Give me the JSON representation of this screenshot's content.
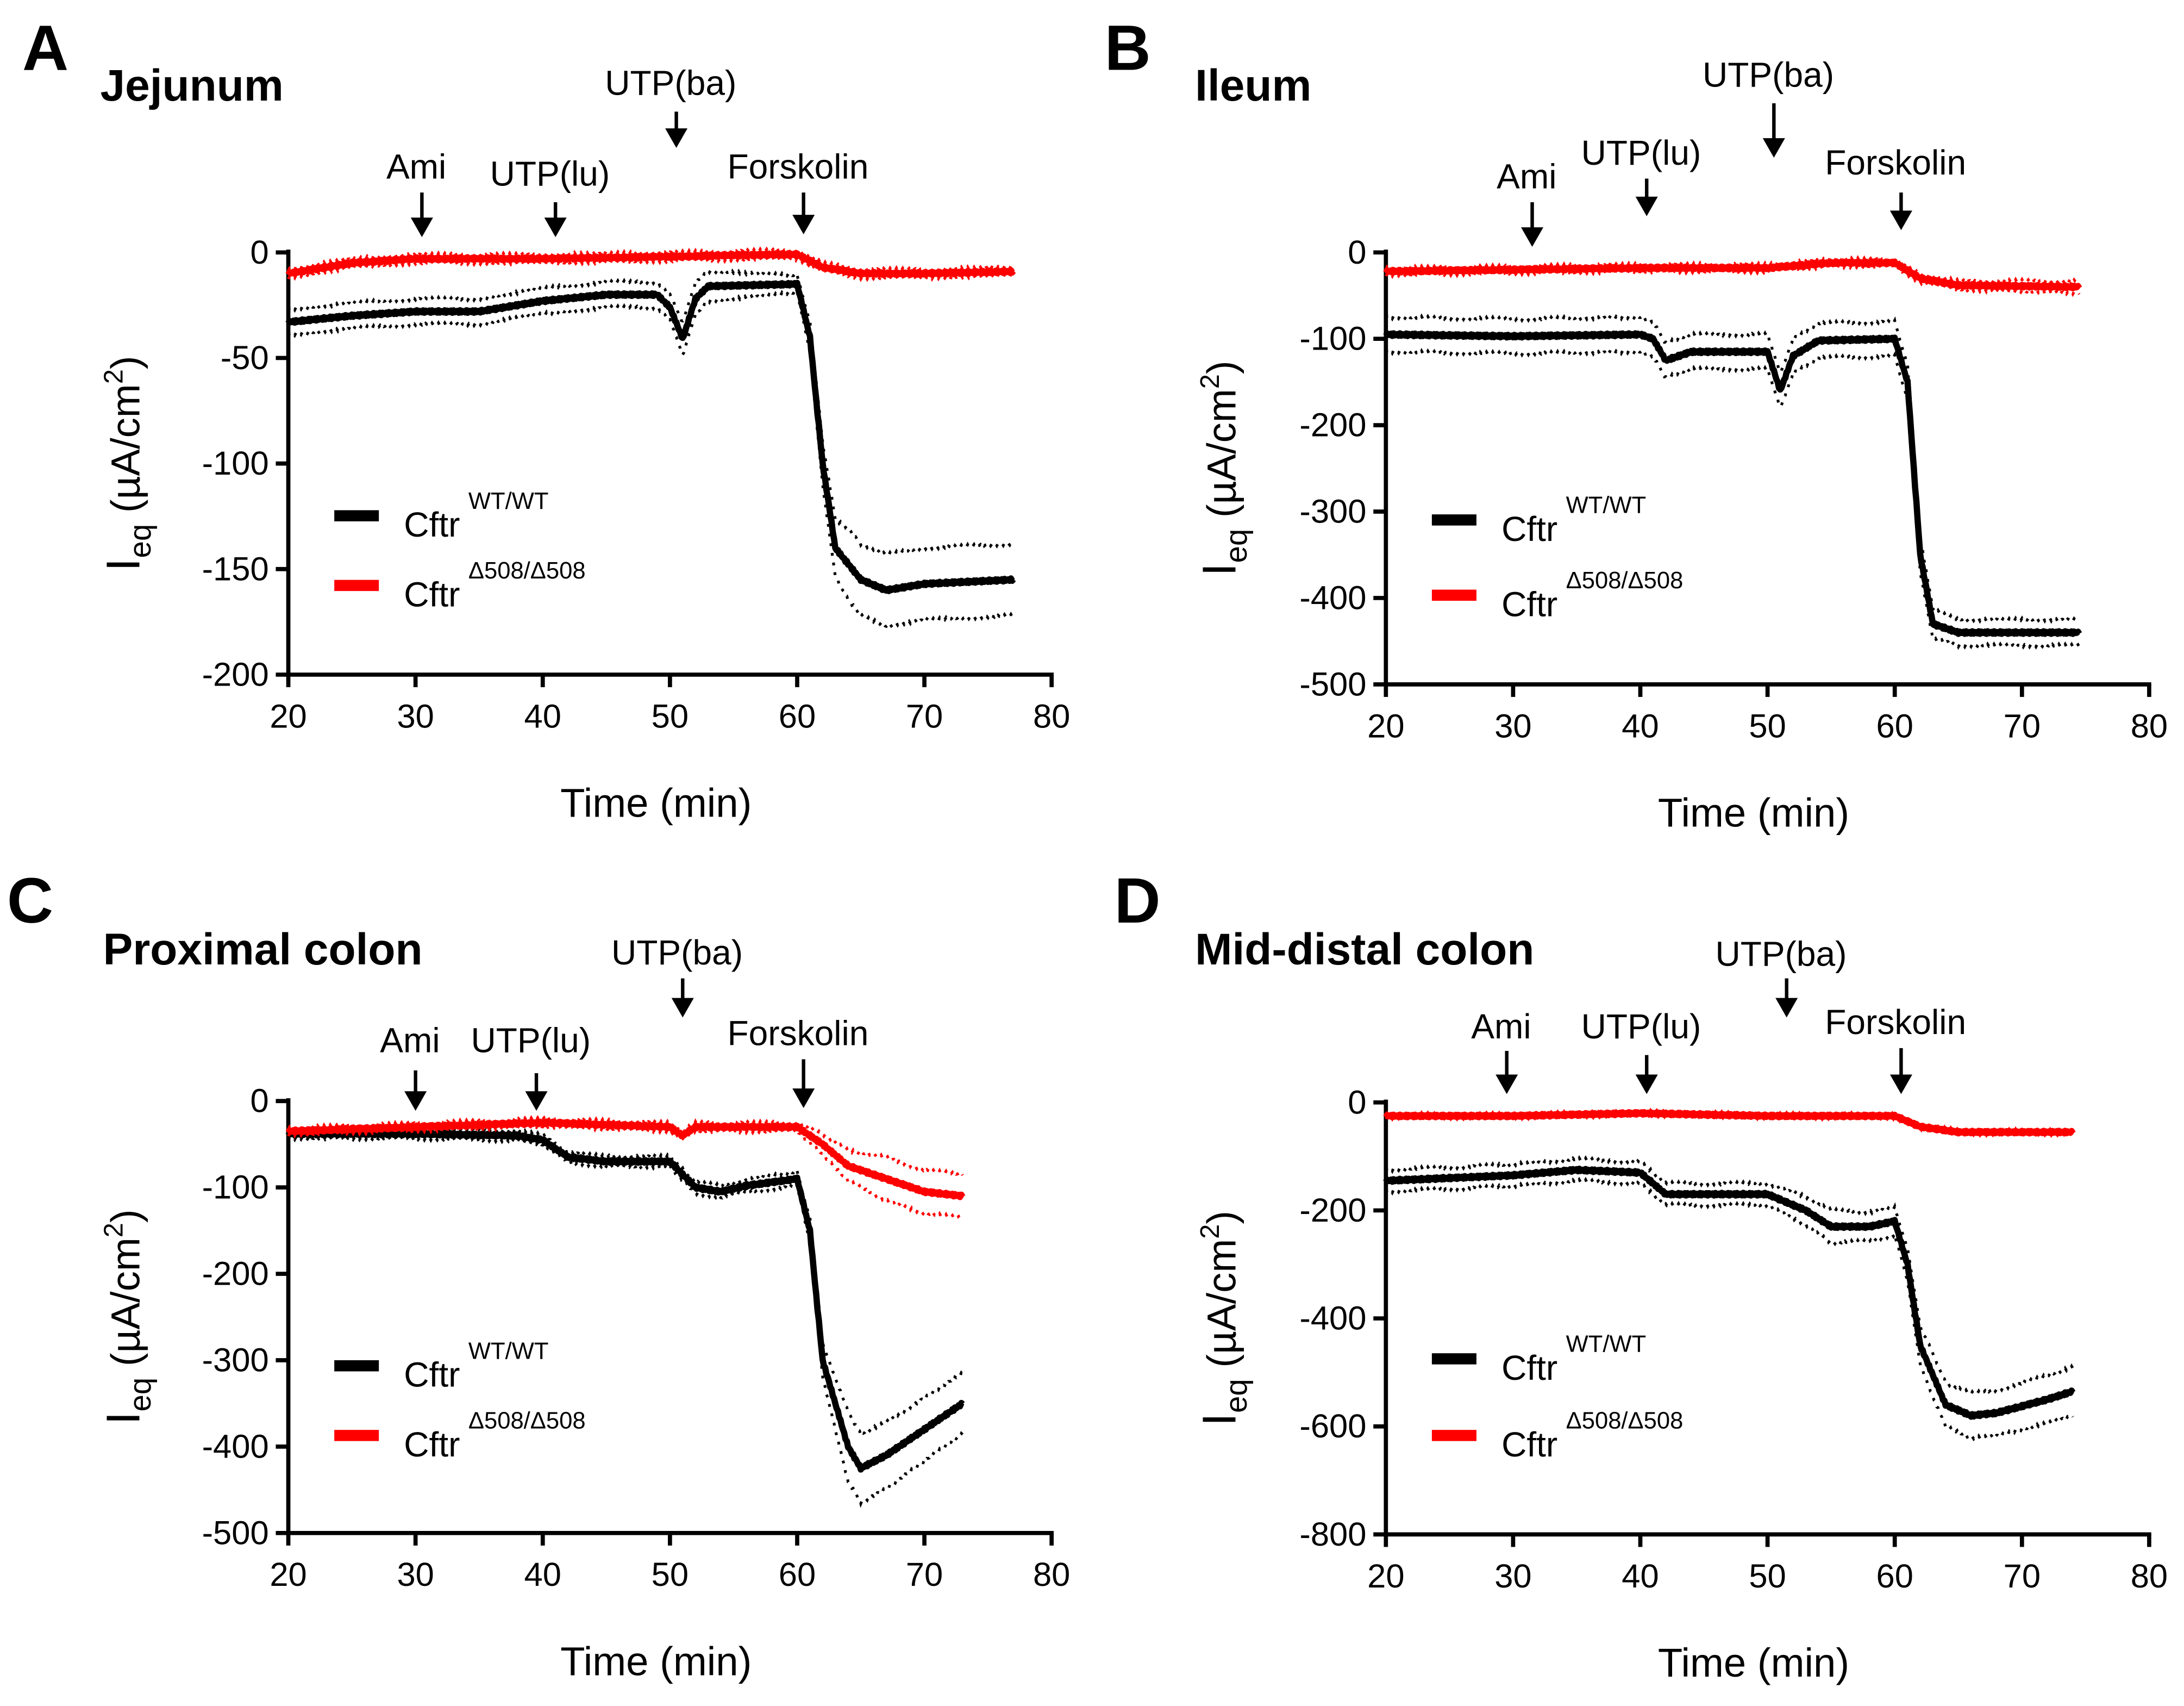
{
  "chart_data": [
    {
      "type": "line",
      "letter": "A",
      "title": "Jejunum",
      "xlabel": "Time (min)",
      "ylabel": "I",
      "ylabel_sub": "eq",
      "ylabel_unit": " (µA/cm",
      "ylabel_sup": "2",
      "ylabel_end": ")",
      "xlim": [
        20,
        80
      ],
      "ylim": [
        -200,
        0
      ],
      "xticks": [
        20,
        30,
        40,
        50,
        60,
        70,
        80
      ],
      "yticks": [
        0,
        -50,
        -100,
        -150,
        -200
      ],
      "annotations": [
        {
          "label": "Ami",
          "x": 30.5
        },
        {
          "label": "UTP(lu)",
          "x": 41
        },
        {
          "label": "UTP(ba)",
          "x": 50.5
        },
        {
          "label": "Forskolin",
          "x": 60.5
        }
      ],
      "series": [
        {
          "name": "Cftr",
          "sup": "WT/WT",
          "color": "#000000",
          "points": [
            [
              20,
              -33
            ],
            [
              25,
              -30
            ],
            [
              30,
              -28
            ],
            [
              35,
              -28
            ],
            [
              40,
              -23
            ],
            [
              45,
              -20
            ],
            [
              49,
              -20
            ],
            [
              50,
              -26
            ],
            [
              51,
              -41
            ],
            [
              52,
              -22
            ],
            [
              53,
              -16
            ],
            [
              60,
              -15
            ],
            [
              61,
              -40
            ],
            [
              62,
              -100
            ],
            [
              63,
              -140
            ],
            [
              65,
              -155
            ],
            [
              67,
              -160
            ],
            [
              70,
              -157
            ],
            [
              77,
              -155
            ]
          ],
          "sem": [
            [
              20,
              6
            ],
            [
              50,
              6
            ],
            [
              51,
              8
            ],
            [
              60,
              4
            ],
            [
              62,
              10
            ],
            [
              64,
              17
            ],
            [
              77,
              17
            ]
          ]
        },
        {
          "name": "Cftr",
          "sup": "Δ508/Δ508",
          "color": "#ff0000",
          "points": [
            [
              20,
              -10
            ],
            [
              25,
              -5
            ],
            [
              30,
              -3
            ],
            [
              40,
              -3
            ],
            [
              50,
              -2
            ],
            [
              58,
              -1
            ],
            [
              60,
              -1
            ],
            [
              62,
              -7
            ],
            [
              65,
              -10
            ],
            [
              70,
              -10
            ],
            [
              77,
              -9
            ]
          ],
          "sem": [
            [
              20,
              2
            ],
            [
              77,
              2
            ]
          ]
        }
      ]
    },
    {
      "type": "line",
      "letter": "B",
      "title": "Ileum",
      "xlabel": "Time (min)",
      "ylabel": "I",
      "ylabel_sub": "eq",
      "ylabel_unit": " (µA/cm",
      "ylabel_sup": "2",
      "ylabel_end": ")",
      "xlim": [
        20,
        80
      ],
      "ylim": [
        -500,
        0
      ],
      "xticks": [
        20,
        30,
        40,
        50,
        60,
        70,
        80
      ],
      "yticks": [
        0,
        -100,
        -200,
        -300,
        -400,
        -500
      ],
      "annotations": [
        {
          "label": "Ami",
          "x": 31.5
        },
        {
          "label": "UTP(lu)",
          "x": 40.5
        },
        {
          "label": "UTP(ba)",
          "x": 50.5
        },
        {
          "label": "Forskolin",
          "x": 60.5
        }
      ],
      "series": [
        {
          "name": "Cftr",
          "sup": "WT/WT",
          "color": "#000000",
          "points": [
            [
              20,
              -95
            ],
            [
              30,
              -97
            ],
            [
              40,
              -95
            ],
            [
              41,
              -100
            ],
            [
              42,
              -125
            ],
            [
              44,
              -115
            ],
            [
              50,
              -115
            ],
            [
              51,
              -160
            ],
            [
              52,
              -120
            ],
            [
              54,
              -102
            ],
            [
              60,
              -100
            ],
            [
              61,
              -150
            ],
            [
              62,
              -350
            ],
            [
              63,
              -430
            ],
            [
              65,
              -440
            ],
            [
              70,
              -440
            ],
            [
              74.5,
              -440
            ]
          ],
          "sem": [
            [
              20,
              20
            ],
            [
              60,
              20
            ],
            [
              62,
              20
            ],
            [
              64,
              15
            ],
            [
              74.5,
              15
            ]
          ]
        },
        {
          "name": "Cftr",
          "sup": "Δ508/Δ508",
          "color": "#ff0000",
          "points": [
            [
              20,
              -22
            ],
            [
              30,
              -20
            ],
            [
              40,
              -18
            ],
            [
              50,
              -18
            ],
            [
              55,
              -12
            ],
            [
              60,
              -12
            ],
            [
              62,
              -30
            ],
            [
              65,
              -38
            ],
            [
              74.5,
              -40
            ]
          ],
          "sem": [
            [
              20,
              4
            ],
            [
              60,
              4
            ],
            [
              74.5,
              7
            ]
          ]
        }
      ]
    },
    {
      "type": "line",
      "letter": "C",
      "title": "Proximal colon",
      "xlabel": "Time (min)",
      "ylabel": "I",
      "ylabel_sub": "eq",
      "ylabel_unit": " (µA/cm",
      "ylabel_sup": "2",
      "ylabel_end": ")",
      "xlim": [
        20,
        80
      ],
      "ylim": [
        -500,
        0
      ],
      "xticks": [
        20,
        30,
        40,
        50,
        60,
        70,
        80
      ],
      "yticks": [
        0,
        -100,
        -200,
        -300,
        -400,
        -500
      ],
      "annotations": [
        {
          "label": "Ami",
          "x": 30
        },
        {
          "label": "UTP(lu)",
          "x": 39.5
        },
        {
          "label": "UTP(ba)",
          "x": 51
        },
        {
          "label": "Forskolin",
          "x": 60.5
        }
      ],
      "series": [
        {
          "name": "Cftr",
          "sup": "WT/WT",
          "color": "#000000",
          "points": [
            [
              20,
              -38
            ],
            [
              30,
              -38
            ],
            [
              38,
              -40
            ],
            [
              40,
              -45
            ],
            [
              42,
              -65
            ],
            [
              45,
              -70
            ],
            [
              50,
              -70
            ],
            [
              52,
              -100
            ],
            [
              54,
              -105
            ],
            [
              56,
              -98
            ],
            [
              60,
              -90
            ],
            [
              61,
              -150
            ],
            [
              62,
              -300
            ],
            [
              64,
              -400
            ],
            [
              65,
              -425
            ],
            [
              67,
              -410
            ],
            [
              70,
              -380
            ],
            [
              73,
              -350
            ]
          ],
          "sem": [
            [
              20,
              5
            ],
            [
              50,
              6
            ],
            [
              60,
              8
            ],
            [
              62,
              20
            ],
            [
              64,
              40
            ],
            [
              73,
              35
            ]
          ]
        },
        {
          "name": "Cftr",
          "sup": "Δ508/Δ508",
          "color": "#ff0000",
          "points": [
            [
              20,
              -35
            ],
            [
              30,
              -30
            ],
            [
              40,
              -25
            ],
            [
              50,
              -30
            ],
            [
              51,
              -40
            ],
            [
              52,
              -30
            ],
            [
              60,
              -30
            ],
            [
              62,
              -50
            ],
            [
              64,
              -75
            ],
            [
              67,
              -90
            ],
            [
              70,
              -105
            ],
            [
              73,
              -110
            ]
          ],
          "sem": [
            [
              20,
              4
            ],
            [
              60,
              5
            ],
            [
              63,
              15
            ],
            [
              67,
              25
            ],
            [
              73,
              25
            ]
          ]
        }
      ]
    },
    {
      "type": "line",
      "letter": "D",
      "title": "Mid-distal colon",
      "xlabel": "Time (min)",
      "ylabel": "I",
      "ylabel_sub": "eq",
      "ylabel_unit": " (µA/cm",
      "ylabel_sup": "2",
      "ylabel_end": ")",
      "xlim": [
        20,
        80
      ],
      "ylim": [
        -800,
        0
      ],
      "xticks": [
        20,
        30,
        40,
        50,
        60,
        70,
        80
      ],
      "yticks": [
        0,
        -200,
        -400,
        -600,
        -800
      ],
      "annotations": [
        {
          "label": "Ami",
          "x": 29.5
        },
        {
          "label": "UTP(lu)",
          "x": 40.5
        },
        {
          "label": "UTP(ba)",
          "x": 51.5
        },
        {
          "label": "Forskolin",
          "x": 60.5
        }
      ],
      "series": [
        {
          "name": "Cftr",
          "sup": "WT/WT",
          "color": "#000000",
          "points": [
            [
              20,
              -145
            ],
            [
              30,
              -135
            ],
            [
              35,
              -125
            ],
            [
              40,
              -130
            ],
            [
              42,
              -170
            ],
            [
              45,
              -170
            ],
            [
              50,
              -170
            ],
            [
              53,
              -200
            ],
            [
              55,
              -230
            ],
            [
              58,
              -230
            ],
            [
              60,
              -220
            ],
            [
              61,
              -300
            ],
            [
              62,
              -450
            ],
            [
              64,
              -560
            ],
            [
              66,
              -580
            ],
            [
              68,
              -575
            ],
            [
              72,
              -550
            ],
            [
              74,
              -535
            ]
          ],
          "sem": [
            [
              20,
              20
            ],
            [
              50,
              20
            ],
            [
              55,
              30
            ],
            [
              60,
              25
            ],
            [
              63,
              40
            ],
            [
              74,
              45
            ]
          ]
        },
        {
          "name": "Cftr",
          "sup": "Δ508/Δ508",
          "color": "#ff0000",
          "points": [
            [
              20,
              -25
            ],
            [
              30,
              -25
            ],
            [
              40,
              -20
            ],
            [
              50,
              -25
            ],
            [
              60,
              -25
            ],
            [
              62,
              -45
            ],
            [
              65,
              -55
            ],
            [
              74,
              -55
            ]
          ],
          "sem": [
            [
              20,
              3
            ],
            [
              74,
              3
            ]
          ]
        }
      ]
    }
  ]
}
